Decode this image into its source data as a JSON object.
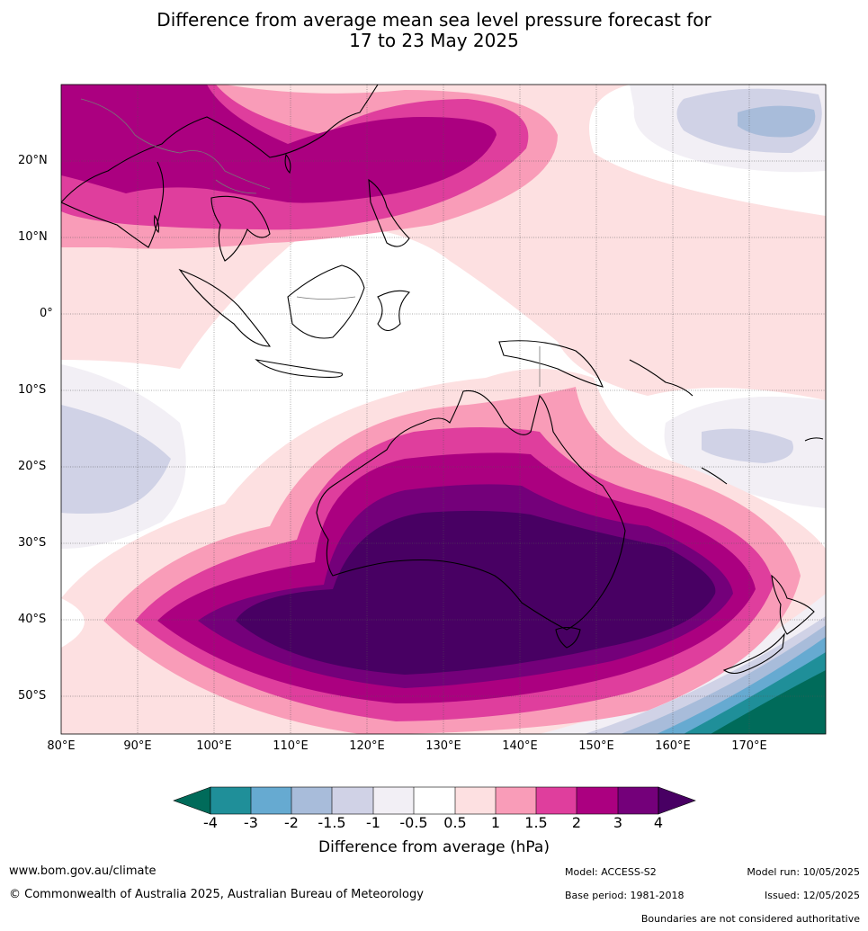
{
  "title": {
    "line1": "Difference from average mean sea level pressure forecast for",
    "line2": "17 to 23 May 2025"
  },
  "map": {
    "lat_labels": [
      "20°N",
      "10°N",
      "0°",
      "10°S",
      "20°S",
      "30°S",
      "40°S",
      "50°S"
    ],
    "lon_labels": [
      "80°E",
      "90°E",
      "100°E",
      "110°E",
      "120°E",
      "130°E",
      "140°E",
      "150°E",
      "160°E",
      "170°E"
    ]
  },
  "colorbar": {
    "tick_labels": [
      "-4",
      "-3",
      "-2",
      "-1.5",
      "-1",
      "-0.5",
      "0.5",
      "1",
      "1.5",
      "2",
      "3",
      "4"
    ],
    "colors": [
      "#006b5a",
      "#1f8f99",
      "#66aad1",
      "#a8bcda",
      "#d0d2e6",
      "#f2eff5",
      "#ffffff",
      "#fde0e1",
      "#f99cb8",
      "#df3e9d",
      "#ab0080",
      "#74007a",
      "#480063"
    ],
    "title": "Difference from average (hPa)"
  },
  "footer": {
    "website": "www.bom.gov.au/climate",
    "copyright": "© Commonwealth of Australia 2025, Australian Bureau of Meteorology",
    "model": "Model: ACCESS-S2",
    "base_period": "Base period: 1981-2018",
    "model_run": "Model run: 10/05/2025",
    "issued": "Issued: 12/05/2025",
    "boundaries_note": "Boundaries are not considered authoritative"
  }
}
